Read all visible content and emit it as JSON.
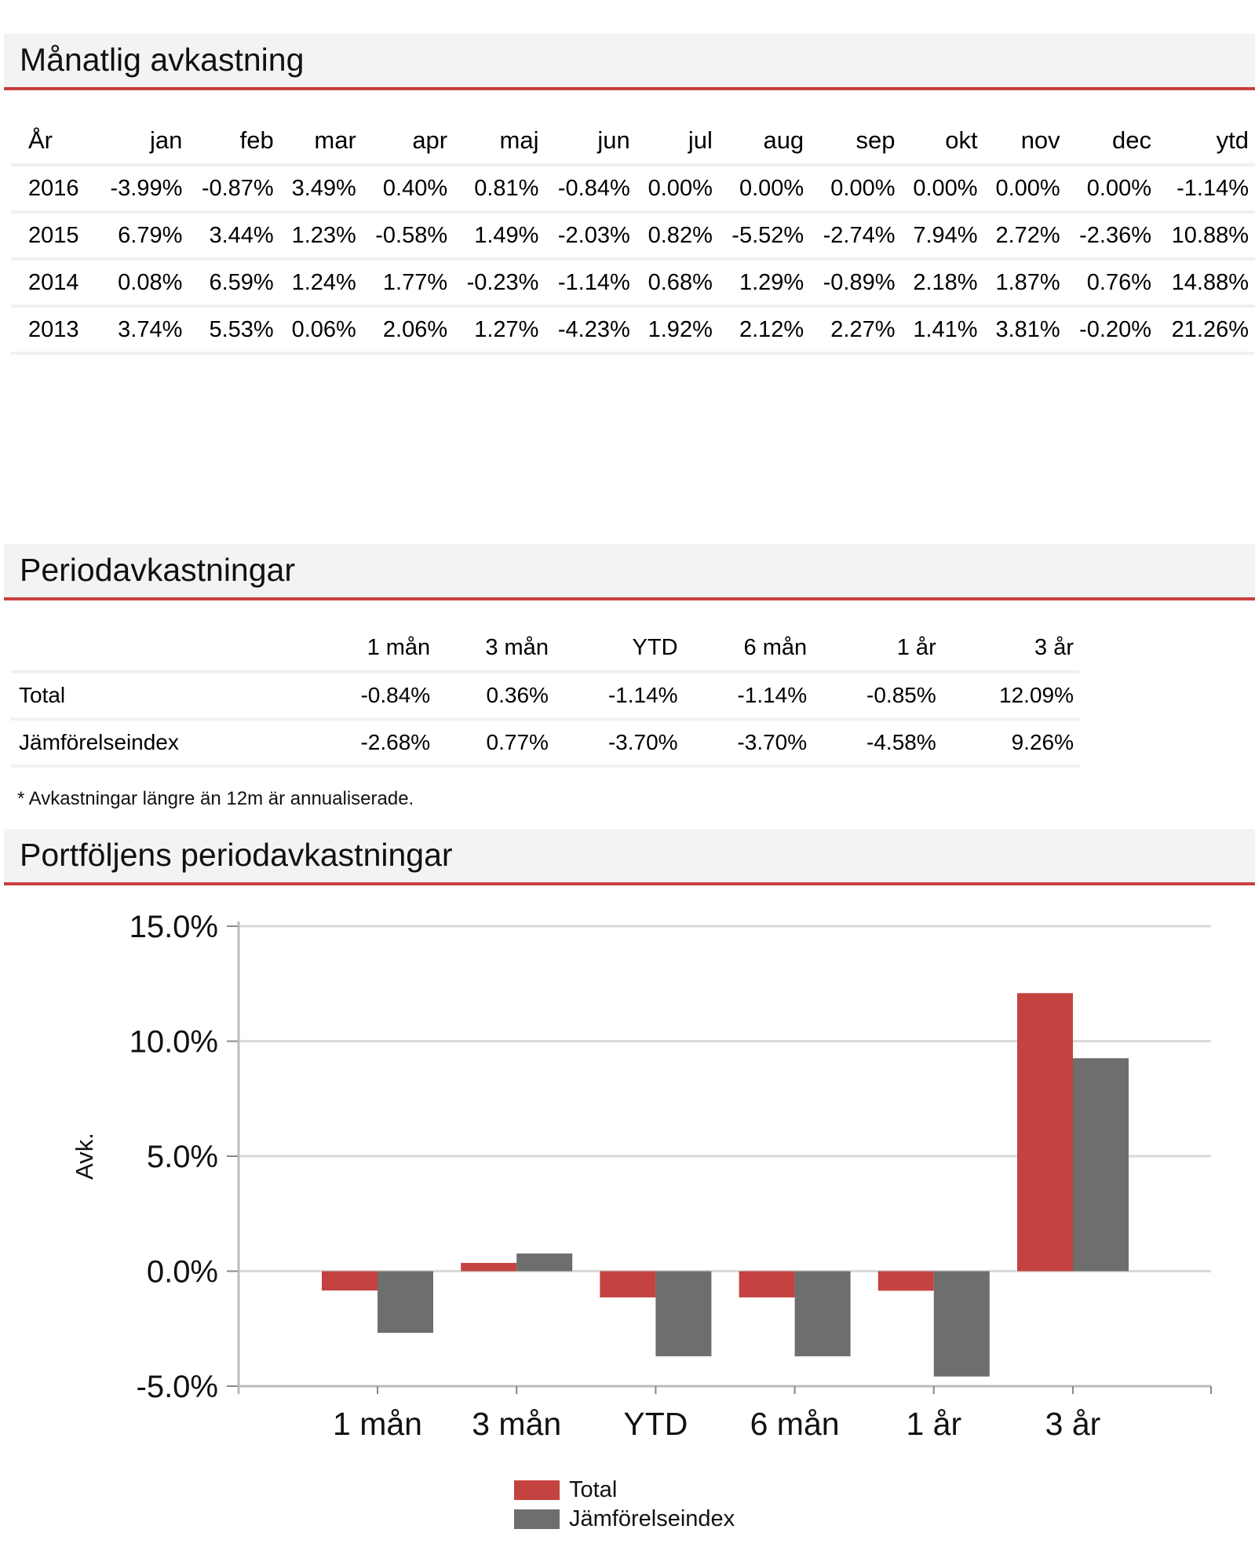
{
  "sections": {
    "monthly_title": "Månatlig avkastning",
    "period_title": "Periodavkastningar",
    "chart_title": "Portföljens periodavkastningar"
  },
  "monthly": {
    "headers": [
      "År",
      "jan",
      "feb",
      "mar",
      "apr",
      "maj",
      "jun",
      "jul",
      "aug",
      "sep",
      "okt",
      "nov",
      "dec",
      "ytd"
    ],
    "rows": [
      [
        "2016",
        "-3.99%",
        "-0.87%",
        "3.49%",
        "0.40%",
        "0.81%",
        "-0.84%",
        "0.00%",
        "0.00%",
        "0.00%",
        "0.00%",
        "0.00%",
        "0.00%",
        "-1.14%"
      ],
      [
        "2015",
        "6.79%",
        "3.44%",
        "1.23%",
        "-0.58%",
        "1.49%",
        "-2.03%",
        "0.82%",
        "-5.52%",
        "-2.74%",
        "7.94%",
        "2.72%",
        "-2.36%",
        "10.88%"
      ],
      [
        "2014",
        "0.08%",
        "6.59%",
        "1.24%",
        "1.77%",
        "-0.23%",
        "-1.14%",
        "0.68%",
        "1.29%",
        "-0.89%",
        "2.18%",
        "1.87%",
        "0.76%",
        "14.88%"
      ],
      [
        "2013",
        "3.74%",
        "5.53%",
        "0.06%",
        "2.06%",
        "1.27%",
        "-4.23%",
        "1.92%",
        "2.12%",
        "2.27%",
        "1.41%",
        "3.81%",
        "-0.20%",
        "21.26%"
      ]
    ]
  },
  "period": {
    "headers": [
      "",
      "1 mån",
      "3 mån",
      "YTD",
      "6 mån",
      "1 år",
      "3 år"
    ],
    "rows": [
      [
        "Total",
        "-0.84%",
        "0.36%",
        "-1.14%",
        "-1.14%",
        "-0.85%",
        "12.09%"
      ],
      [
        "Jämförelseindex",
        "-2.68%",
        "0.77%",
        "-3.70%",
        "-3.70%",
        "-4.58%",
        "9.26%"
      ]
    ],
    "footnote": "* Avkastningar längre än 12m är annualiserade."
  },
  "colors": {
    "accent": "#c8403f",
    "total": "#c4423f",
    "index": "#6e6e6e",
    "grid": "#d9d9d9",
    "header_bg": "#f3f3f3"
  },
  "chart_data": {
    "type": "bar",
    "title": "Portföljens periodavkastningar",
    "categories": [
      "1 mån",
      "3 mån",
      "YTD",
      "6 mån",
      "1 år",
      "3 år"
    ],
    "series": [
      {
        "name": "Total",
        "values": [
          -0.84,
          0.36,
          -1.14,
          -1.14,
          -0.85,
          12.09
        ]
      },
      {
        "name": "Jämförelseindex",
        "values": [
          -2.68,
          0.77,
          -3.7,
          -3.7,
          -4.58,
          9.26
        ]
      }
    ],
    "xlabel": "",
    "ylabel": "Avk.",
    "ylim": [
      -5,
      15
    ],
    "yticks": [
      -5,
      0,
      5,
      10,
      15
    ],
    "ytick_labels": [
      "-5.0%",
      "0.0%",
      "5.0%",
      "10.0%",
      "15.0%"
    ],
    "grid": true,
    "legend": "bottom-center"
  }
}
